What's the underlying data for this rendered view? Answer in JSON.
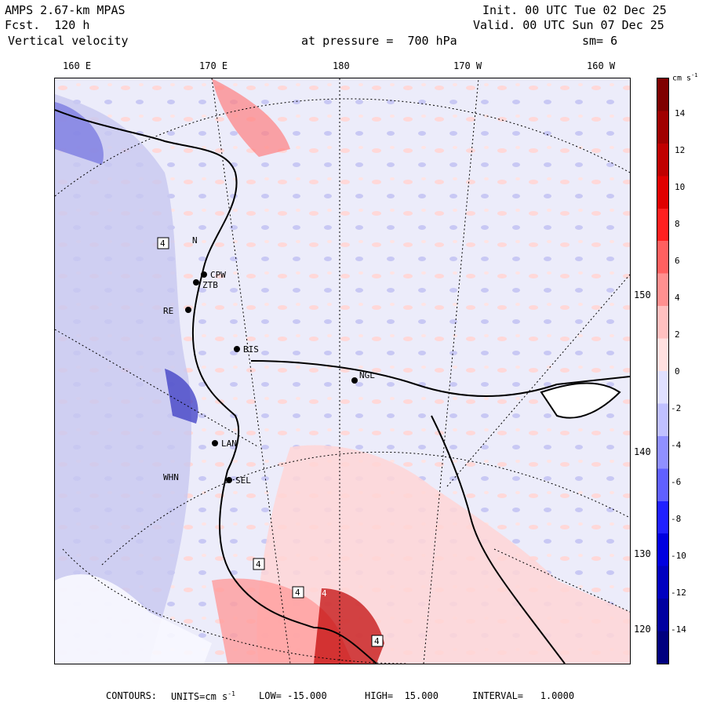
{
  "header": {
    "model": "AMPS 2.67-km MPAS",
    "fcst": "Fcst.  120 h",
    "field": "Vertical velocity",
    "init": "Init. 00 UTC Tue 02 Dec 25",
    "valid": "Valid. 00 UTC Sun 07 Dec 25",
    "pressure": "at pressure =  700 hPa",
    "smooth": "sm= 6"
  },
  "lon_labels": [
    "160 E",
    "170 E",
    "180",
    "170 W",
    "160 W"
  ],
  "lon_right_labels": [
    "150 W",
    "140 W",
    "130 W",
    "120 W"
  ],
  "stations": [
    "CPW",
    "ZTB",
    "BIS",
    "NGL",
    "LAN",
    "SEL",
    "WHN",
    "RE",
    "N"
  ],
  "colorbar": {
    "unit": "cm s",
    "unit_sup": "-1",
    "ticks": [
      "14",
      "12",
      "10",
      "8",
      "6",
      "4",
      "2",
      "0",
      "-2",
      "-4",
      "-6",
      "-8",
      "-10",
      "-12",
      "-14"
    ],
    "colors": [
      "#7f0000",
      "#a00000",
      "#c00000",
      "#e00000",
      "#ff2020",
      "#ff6060",
      "#ff9090",
      "#ffc0c0",
      "#ffe0e0",
      "#e0e0ff",
      "#c0c0ff",
      "#9090ff",
      "#6060ff",
      "#2020ff",
      "#0000e0",
      "#0000c0",
      "#0000a0",
      "#00007f"
    ]
  },
  "footer": {
    "contours": "CONTOURS:",
    "units": "UNITS=cm s",
    "units_sup": "-1",
    "low": "LOW= -15.000",
    "high": "HIGH=  15.000",
    "interval": "INTERVAL=   1.0000"
  },
  "markers": [
    "4",
    "4",
    "4",
    "4",
    "4"
  ]
}
